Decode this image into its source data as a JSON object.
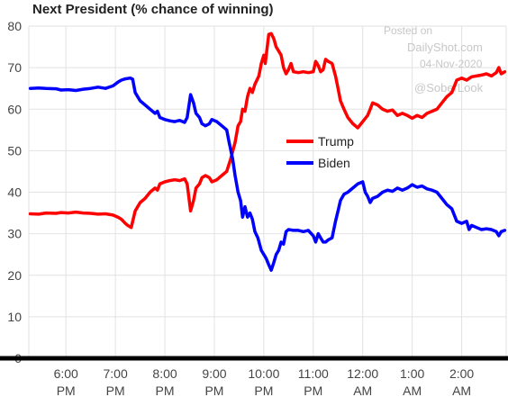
{
  "chart_data": {
    "type": "line",
    "title": "Next President (% chance of winning)",
    "ylim": [
      0,
      80
    ],
    "yticks": [
      0,
      10,
      20,
      30,
      40,
      50,
      60,
      70,
      80
    ],
    "xlim": [
      5.25,
      14.9
    ],
    "xticks": [
      {
        "x": 6,
        "line1": "6:00",
        "line2": "PM"
      },
      {
        "x": 7,
        "line1": "7:00",
        "line2": "PM"
      },
      {
        "x": 8,
        "line1": "8:00",
        "line2": "PM"
      },
      {
        "x": 9,
        "line1": "9:00",
        "line2": "PM"
      },
      {
        "x": 10,
        "line1": "10:00",
        "line2": "PM"
      },
      {
        "x": 11,
        "line1": "11:00",
        "line2": "PM"
      },
      {
        "x": 12,
        "line1": "12:00",
        "line2": "AM"
      },
      {
        "x": 13,
        "line1": "1:00",
        "line2": "AM"
      },
      {
        "x": 14,
        "line1": "2:00",
        "line2": "AM"
      }
    ],
    "grid": true,
    "legend_position": "center-right",
    "series": [
      {
        "name": "Trump",
        "color": "#ff0000",
        "points": [
          [
            5.28,
            34.8
          ],
          [
            5.45,
            34.7
          ],
          [
            5.6,
            35.0
          ],
          [
            5.8,
            34.9
          ],
          [
            5.9,
            35.1
          ],
          [
            6.05,
            35.0
          ],
          [
            6.2,
            35.2
          ],
          [
            6.35,
            35.0
          ],
          [
            6.5,
            34.9
          ],
          [
            6.65,
            34.7
          ],
          [
            6.8,
            34.8
          ],
          [
            6.95,
            34.5
          ],
          [
            7.05,
            34.0
          ],
          [
            7.12,
            33.5
          ],
          [
            7.2,
            32.5
          ],
          [
            7.25,
            32.0
          ],
          [
            7.32,
            31.5
          ],
          [
            7.4,
            35.5
          ],
          [
            7.5,
            37.5
          ],
          [
            7.6,
            38.5
          ],
          [
            7.7,
            40.0
          ],
          [
            7.8,
            41.0
          ],
          [
            7.85,
            40.5
          ],
          [
            7.9,
            42.0
          ],
          [
            8.0,
            42.5
          ],
          [
            8.1,
            42.8
          ],
          [
            8.2,
            43.0
          ],
          [
            8.3,
            42.8
          ],
          [
            8.4,
            43.2
          ],
          [
            8.45,
            42.0
          ],
          [
            8.52,
            35.5
          ],
          [
            8.58,
            38.0
          ],
          [
            8.63,
            41.0
          ],
          [
            8.7,
            42.0
          ],
          [
            8.75,
            43.5
          ],
          [
            8.82,
            44.0
          ],
          [
            8.9,
            43.5
          ],
          [
            8.95,
            42.5
          ],
          [
            9.05,
            43.0
          ],
          [
            9.15,
            44.0
          ],
          [
            9.25,
            45.0
          ],
          [
            9.33,
            48.0
          ],
          [
            9.42,
            52.0
          ],
          [
            9.48,
            56.0
          ],
          [
            9.53,
            57.0
          ],
          [
            9.57,
            60.0
          ],
          [
            9.62,
            59.5
          ],
          [
            9.67,
            63.0
          ],
          [
            9.72,
            65.0
          ],
          [
            9.77,
            64.0
          ],
          [
            9.82,
            66.0
          ],
          [
            9.9,
            68.0
          ],
          [
            9.95,
            71.0
          ],
          [
            10.0,
            73.0
          ],
          [
            10.03,
            71.0
          ],
          [
            10.07,
            75.0
          ],
          [
            10.1,
            78.0
          ],
          [
            10.15,
            78.2
          ],
          [
            10.2,
            77.0
          ],
          [
            10.25,
            75.0
          ],
          [
            10.3,
            74.0
          ],
          [
            10.35,
            73.0
          ],
          [
            10.4,
            70.0
          ],
          [
            10.45,
            68.5
          ],
          [
            10.5,
            69.5
          ],
          [
            10.55,
            71.0
          ],
          [
            10.6,
            69.0
          ],
          [
            10.7,
            68.8
          ],
          [
            10.8,
            69.0
          ],
          [
            10.9,
            68.8
          ],
          [
            11.0,
            69.0
          ],
          [
            11.05,
            71.5
          ],
          [
            11.1,
            70.5
          ],
          [
            11.15,
            69.0
          ],
          [
            11.2,
            69.5
          ],
          [
            11.25,
            72.0
          ],
          [
            11.3,
            71.5
          ],
          [
            11.38,
            71.0
          ],
          [
            11.45,
            68.0
          ],
          [
            11.5,
            65.0
          ],
          [
            11.55,
            62.0
          ],
          [
            11.62,
            60.0
          ],
          [
            11.7,
            58.0
          ],
          [
            11.8,
            56.5
          ],
          [
            11.9,
            55.5
          ],
          [
            12.0,
            57.0
          ],
          [
            12.1,
            58.5
          ],
          [
            12.15,
            60.0
          ],
          [
            12.2,
            61.5
          ],
          [
            12.3,
            61.0
          ],
          [
            12.4,
            60.0
          ],
          [
            12.5,
            59.5
          ],
          [
            12.6,
            59.8
          ],
          [
            12.7,
            58.5
          ],
          [
            12.8,
            59.0
          ],
          [
            12.9,
            58.5
          ],
          [
            13.0,
            57.8
          ],
          [
            13.1,
            58.5
          ],
          [
            13.2,
            58.0
          ],
          [
            13.3,
            59.0
          ],
          [
            13.4,
            59.5
          ],
          [
            13.5,
            60.0
          ],
          [
            13.6,
            61.5
          ],
          [
            13.7,
            63.0
          ],
          [
            13.8,
            64.0
          ],
          [
            13.9,
            67.0
          ],
          [
            14.0,
            67.5
          ],
          [
            14.1,
            67.0
          ],
          [
            14.2,
            67.8
          ],
          [
            14.3,
            68.0
          ],
          [
            14.4,
            68.2
          ],
          [
            14.5,
            68.5
          ],
          [
            14.6,
            68.0
          ],
          [
            14.7,
            68.8
          ],
          [
            14.75,
            70.0
          ],
          [
            14.8,
            68.5
          ],
          [
            14.87,
            69.0
          ]
        ]
      },
      {
        "name": "Biden",
        "color": "#0000ff",
        "points": [
          [
            5.28,
            65.0
          ],
          [
            5.45,
            65.1
          ],
          [
            5.6,
            65.0
          ],
          [
            5.8,
            64.9
          ],
          [
            5.9,
            64.6
          ],
          [
            6.05,
            64.7
          ],
          [
            6.2,
            64.5
          ],
          [
            6.35,
            64.8
          ],
          [
            6.5,
            65.0
          ],
          [
            6.65,
            65.3
          ],
          [
            6.8,
            65.0
          ],
          [
            6.95,
            65.6
          ],
          [
            7.05,
            66.5
          ],
          [
            7.12,
            67.0
          ],
          [
            7.2,
            67.3
          ],
          [
            7.3,
            67.5
          ],
          [
            7.35,
            67.2
          ],
          [
            7.4,
            64.0
          ],
          [
            7.5,
            62.0
          ],
          [
            7.6,
            61.0
          ],
          [
            7.7,
            60.0
          ],
          [
            7.8,
            59.0
          ],
          [
            7.85,
            59.5
          ],
          [
            7.9,
            58.0
          ],
          [
            8.0,
            57.5
          ],
          [
            8.1,
            57.2
          ],
          [
            8.2,
            57.0
          ],
          [
            8.3,
            57.3
          ],
          [
            8.4,
            56.8
          ],
          [
            8.45,
            58.0
          ],
          [
            8.52,
            63.5
          ],
          [
            8.58,
            61.5
          ],
          [
            8.63,
            59.0
          ],
          [
            8.7,
            58.0
          ],
          [
            8.75,
            56.5
          ],
          [
            8.82,
            56.0
          ],
          [
            8.9,
            56.5
          ],
          [
            8.95,
            57.5
          ],
          [
            9.05,
            57.0
          ],
          [
            9.15,
            56.0
          ],
          [
            9.25,
            55.0
          ],
          [
            9.3,
            52.0
          ],
          [
            9.37,
            48.0
          ],
          [
            9.42,
            44.0
          ],
          [
            9.48,
            40.0
          ],
          [
            9.53,
            38.0
          ],
          [
            9.57,
            34.0
          ],
          [
            9.62,
            36.5
          ],
          [
            9.67,
            34.0
          ],
          [
            9.72,
            35.0
          ],
          [
            9.77,
            33.5
          ],
          [
            9.82,
            30.5
          ],
          [
            9.88,
            29.0
          ],
          [
            9.95,
            26.0
          ],
          [
            10.0,
            25.0
          ],
          [
            10.05,
            24.0
          ],
          [
            10.1,
            22.5
          ],
          [
            10.15,
            21.2
          ],
          [
            10.2,
            23.0
          ],
          [
            10.25,
            25.0
          ],
          [
            10.3,
            26.0
          ],
          [
            10.35,
            28.0
          ],
          [
            10.4,
            27.5
          ],
          [
            10.45,
            30.5
          ],
          [
            10.5,
            31.0
          ],
          [
            10.6,
            30.8
          ],
          [
            10.7,
            30.8
          ],
          [
            10.8,
            30.5
          ],
          [
            10.9,
            30.8
          ],
          [
            11.0,
            29.5
          ],
          [
            11.05,
            28.0
          ],
          [
            11.1,
            30.0
          ],
          [
            11.15,
            29.0
          ],
          [
            11.2,
            28.0
          ],
          [
            11.25,
            28.0
          ],
          [
            11.3,
            28.5
          ],
          [
            11.38,
            29.0
          ],
          [
            11.45,
            33.0
          ],
          [
            11.5,
            35.5
          ],
          [
            11.55,
            38.0
          ],
          [
            11.62,
            39.5
          ],
          [
            11.7,
            40.0
          ],
          [
            11.8,
            41.0
          ],
          [
            11.9,
            42.0
          ],
          [
            12.0,
            42.5
          ],
          [
            12.05,
            40.0
          ],
          [
            12.1,
            39.0
          ],
          [
            12.15,
            37.5
          ],
          [
            12.2,
            38.5
          ],
          [
            12.3,
            39.0
          ],
          [
            12.4,
            40.0
          ],
          [
            12.5,
            40.5
          ],
          [
            12.6,
            40.2
          ],
          [
            12.7,
            41.0
          ],
          [
            12.8,
            40.5
          ],
          [
            12.9,
            41.0
          ],
          [
            13.0,
            41.8
          ],
          [
            13.1,
            41.2
          ],
          [
            13.2,
            41.5
          ],
          [
            13.3,
            40.8
          ],
          [
            13.4,
            40.5
          ],
          [
            13.5,
            40.0
          ],
          [
            13.6,
            38.5
          ],
          [
            13.7,
            37.0
          ],
          [
            13.8,
            36.0
          ],
          [
            13.9,
            33.0
          ],
          [
            14.0,
            32.5
          ],
          [
            14.1,
            33.0
          ],
          [
            14.15,
            31.0
          ],
          [
            14.2,
            32.0
          ],
          [
            14.3,
            31.5
          ],
          [
            14.4,
            31.0
          ],
          [
            14.5,
            31.2
          ],
          [
            14.6,
            31.0
          ],
          [
            14.7,
            30.5
          ],
          [
            14.75,
            29.5
          ],
          [
            14.8,
            30.5
          ],
          [
            14.87,
            30.8
          ]
        ]
      }
    ]
  },
  "watermark": {
    "line1": "Posted on",
    "line2": "DailyShot.com",
    "line3": "04-Nov-2020",
    "handle": "@SoberLook"
  }
}
